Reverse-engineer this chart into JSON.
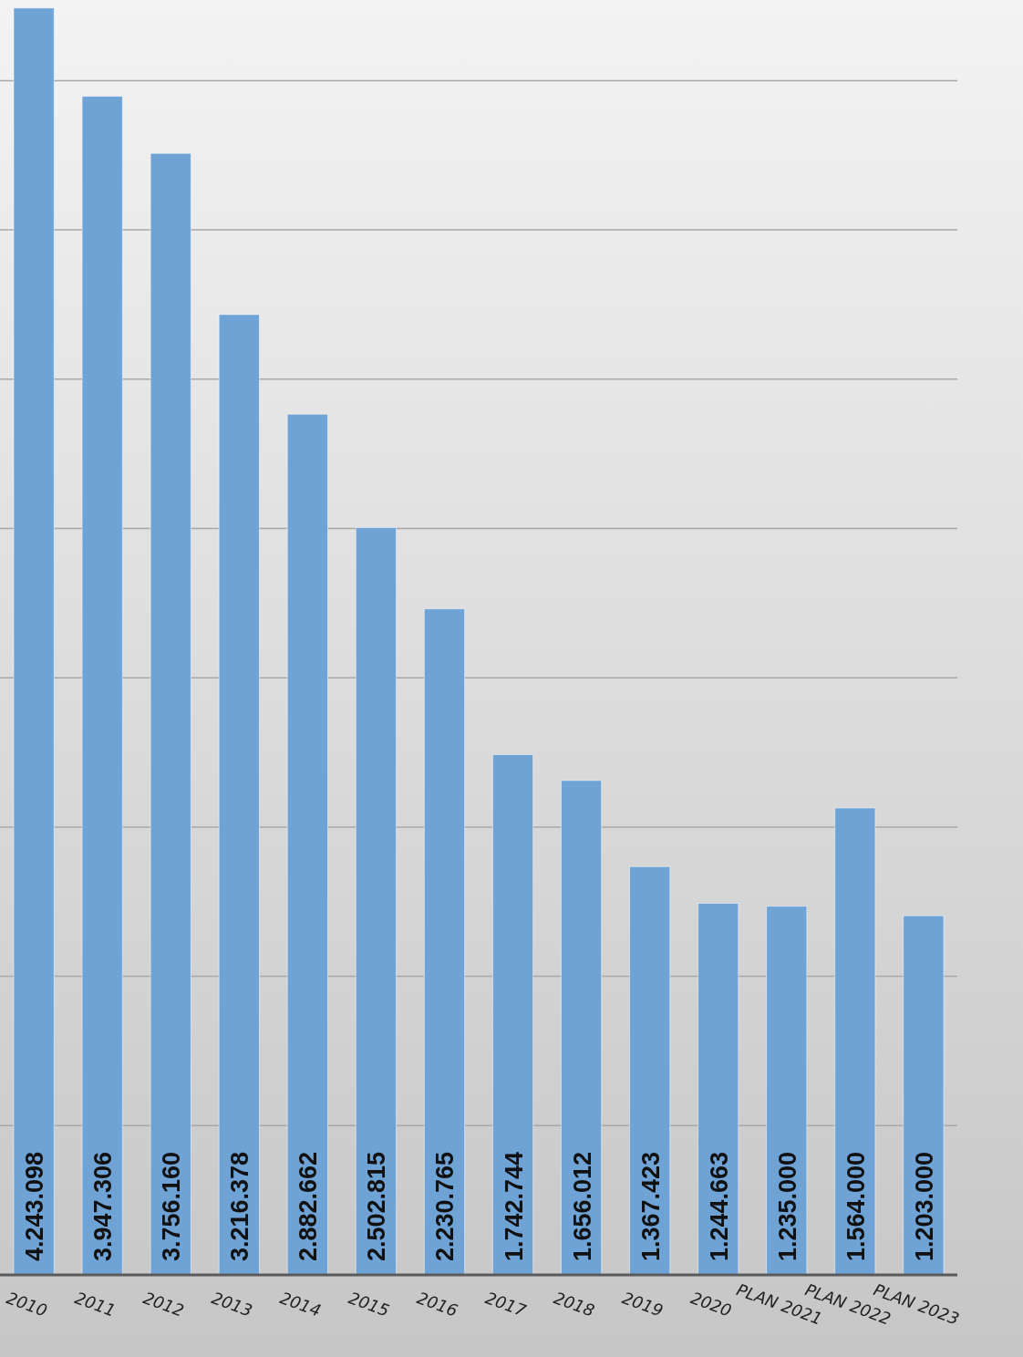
{
  "chart_data": {
    "type": "bar",
    "categories": [
      "2010",
      "2011",
      "2012",
      "2013",
      "2014",
      "2015",
      "2016",
      "2017",
      "2018",
      "2019",
      "2020",
      "PLAN 2021",
      "PLAN 2022",
      "PLAN 2023"
    ],
    "values": [
      4243098,
      3947306,
      3756160,
      3216378,
      2882662,
      2502815,
      2230765,
      1742744,
      1656012,
      1367423,
      1244663,
      1235000,
      1564000,
      1203000
    ],
    "value_labels": [
      "4.243.098",
      "3.947.306",
      "3.756.160",
      "3.216.378",
      "2.882.662",
      "2.502.815",
      "2.230.765",
      "1.742.744",
      "1.656.012",
      "1.367.423",
      "1.244.663",
      "1.235.000",
      "1.564.000",
      "1.203.000"
    ],
    "color": "#6fa3d6",
    "ylim": [
      0,
      4270000
    ],
    "yticks": [
      {
        "value": 0,
        "label": null
      },
      {
        "value": 500000,
        "label": null
      },
      {
        "value": 1000000,
        "label": null
      },
      {
        "value": 1500000,
        "label": null
      },
      {
        "value": 2000000,
        "label": null
      },
      {
        "value": 2500000,
        "label": null
      },
      {
        "value": 3000000,
        "label": null
      },
      {
        "value": 3500000,
        "label": null
      },
      {
        "value": 4000000,
        "label": null
      }
    ],
    "grid": "y",
    "tick_labels": "x"
  }
}
